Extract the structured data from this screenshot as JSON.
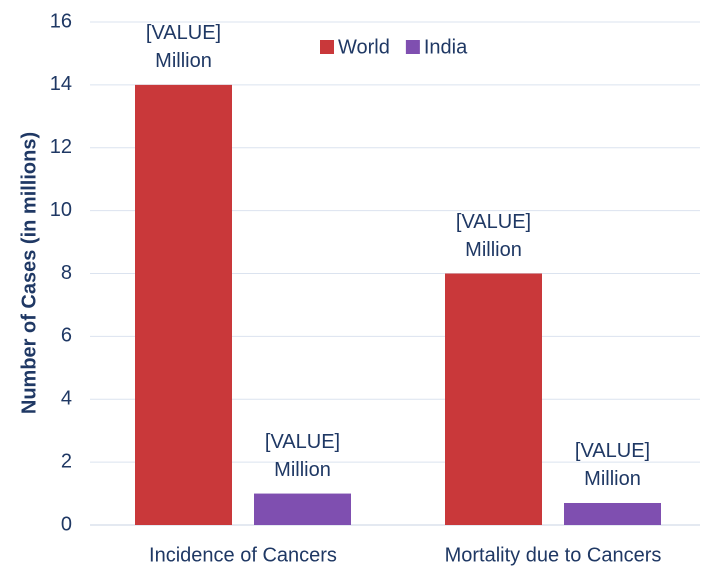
{
  "chart_data": {
    "type": "bar",
    "y_label": "Number of Cases (in millions)",
    "categories": [
      "Incidence of Cancers",
      "Mortality due to Cancers"
    ],
    "series": [
      {
        "name": "World",
        "color": "#c9383a",
        "values": [
          14,
          8
        ],
        "value_labels": [
          "[VALUE]\nMillion",
          "[VALUE]\nMillion"
        ]
      },
      {
        "name": "India",
        "color": "#7f4fb0",
        "values": [
          1.0,
          0.7
        ],
        "value_labels": [
          "[VALUE]\nMillion",
          "[VALUE]\nMillion"
        ]
      }
    ],
    "ylim": [
      0,
      16
    ],
    "yticks": [
      0,
      2,
      4,
      6,
      8,
      10,
      12,
      14,
      16
    ],
    "grid": true,
    "legend": "top"
  }
}
